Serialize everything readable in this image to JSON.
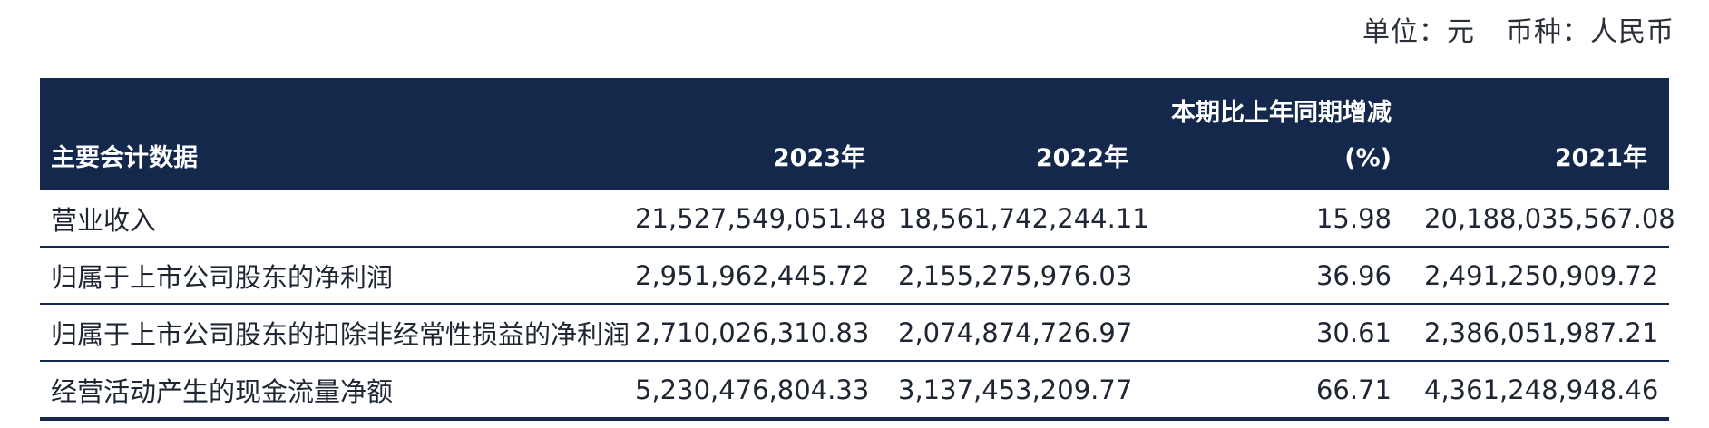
{
  "unit_line": {
    "unit": "单位：元",
    "currency": "币种：人民币"
  },
  "table": {
    "headers": [
      "主要会计数据",
      "2023年",
      "2022年",
      "本期比上年同期增减",
      "(%)",
      "2021年"
    ],
    "rows": [
      [
        "营业收入",
        "21,527,549,051.48",
        "18,561,742,244.11",
        "15.98",
        "20,188,035,567.08"
      ],
      [
        "归属于上市公司股东的净利润",
        "2,951,962,445.72",
        "2,155,275,976.03",
        "36.96",
        "2,491,250,909.72"
      ],
      [
        "归属于上市公司股东的扣除非经常性损益的净利润",
        "2,710,026,310.83",
        "2,074,874,726.97",
        "30.61",
        "2,386,051,987.21"
      ],
      [
        "经营活动产生的现金流量净额",
        "5,230,476,804.33",
        "3,137,453,209.77",
        "66.71",
        "4,361,248,948.46"
      ]
    ]
  },
  "colors": {
    "header_bg": "#13284b",
    "header_text": "#ffffff",
    "rule": "#13284b"
  }
}
